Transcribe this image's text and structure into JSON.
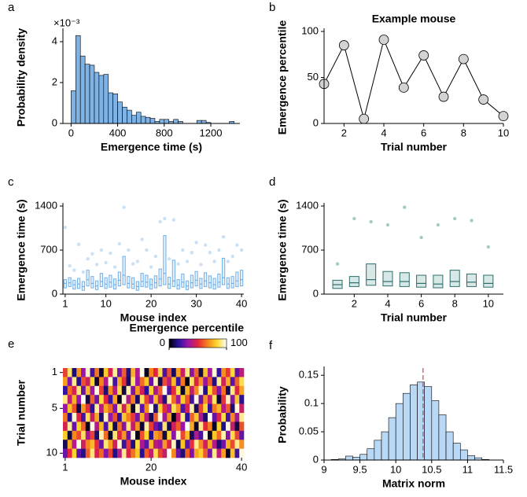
{
  "chart_data": [
    {
      "panel": "a",
      "type": "histogram",
      "xlabel": "Emergence time (s)",
      "ylabel": "Probability density",
      "y_exponent": "×10⁻³",
      "color": "#7fb2e5",
      "bins": [
        0,
        40,
        80,
        120,
        160,
        200,
        240,
        280,
        320,
        360,
        400,
        440,
        480,
        520,
        560,
        600,
        640,
        680,
        720,
        760,
        800,
        840,
        880,
        920,
        960,
        1000,
        1040,
        1080,
        1120,
        1160,
        1200,
        1240,
        1280,
        1320,
        1360,
        1400
      ],
      "values": [
        1.6,
        4.3,
        3.3,
        2.9,
        2.85,
        2.5,
        2.35,
        2.4,
        1.5,
        1.45,
        1.05,
        0.8,
        0.65,
        0.4,
        0.55,
        0.35,
        0.3,
        0.25,
        0.1,
        0.2,
        0.2,
        0.1,
        0.2,
        0.1,
        0,
        0,
        0,
        0.15,
        0.15,
        0.05,
        0,
        0,
        0,
        0,
        0.1
      ],
      "xlim": [
        -70,
        1450
      ],
      "xticks": [
        0,
        400,
        800,
        1200
      ],
      "ylim": [
        0,
        4.5
      ],
      "yticks": [
        0,
        2,
        4
      ]
    },
    {
      "panel": "b",
      "type": "line",
      "title": "Example mouse",
      "xlabel": "Trial number",
      "ylabel": "Emergence percentile",
      "color": "#000000",
      "marker_color": "#d3d3d3",
      "x": [
        1,
        2,
        3,
        4,
        5,
        6,
        7,
        8,
        9,
        10
      ],
      "values": [
        43,
        85,
        5,
        91,
        39,
        74,
        29,
        70,
        26,
        8
      ],
      "xlim": [
        1,
        10
      ],
      "xticks": [
        2,
        4,
        6,
        8,
        10
      ],
      "ylim": [
        0,
        100
      ],
      "yticks": [
        0,
        50,
        100
      ]
    },
    {
      "panel": "c",
      "type": "box",
      "xlabel": "Mouse index",
      "ylabel": "Emergence time (s)",
      "color": "#6fb0ea",
      "point_color": "#bcdaf5",
      "x": [
        1,
        2,
        3,
        4,
        5,
        6,
        7,
        8,
        9,
        10,
        11,
        12,
        13,
        14,
        15,
        16,
        17,
        18,
        19,
        20,
        21,
        22,
        23,
        24,
        25,
        26,
        27,
        28,
        29,
        30,
        31,
        32,
        33,
        34,
        35,
        36,
        37,
        38,
        39,
        40
      ],
      "q1": [
        100,
        120,
        80,
        90,
        60,
        130,
        100,
        70,
        120,
        90,
        110,
        80,
        130,
        150,
        100,
        90,
        60,
        120,
        110,
        80,
        100,
        130,
        150,
        90,
        120,
        80,
        110,
        70,
        100,
        130,
        90,
        120,
        100,
        80,
        110,
        150,
        90,
        100,
        120,
        130
      ],
      "median": [
        170,
        180,
        150,
        160,
        120,
        230,
        170,
        130,
        200,
        160,
        190,
        150,
        220,
        300,
        170,
        160,
        120,
        200,
        190,
        150,
        180,
        240,
        330,
        160,
        210,
        140,
        190,
        130,
        180,
        220,
        160,
        210,
        180,
        150,
        190,
        260,
        160,
        170,
        210,
        230
      ],
      "q3": [
        230,
        260,
        220,
        250,
        200,
        380,
        280,
        210,
        330,
        260,
        300,
        240,
        350,
        600,
        280,
        260,
        200,
        330,
        300,
        240,
        290,
        400,
        930,
        270,
        540,
        230,
        320,
        210,
        300,
        360,
        250,
        340,
        290,
        250,
        320,
        570,
        260,
        280,
        350,
        380
      ],
      "max": [
        1060,
        450,
        380,
        790,
        350,
        560,
        640,
        470,
        700,
        500,
        650,
        430,
        800,
        1380,
        700,
        480,
        520,
        870,
        700,
        430,
        600,
        1150,
        1200,
        560,
        1180,
        480,
        700,
        520,
        660,
        820,
        470,
        780,
        660,
        520,
        700,
        910,
        520,
        600,
        780,
        700
      ],
      "xlim": [
        0.5,
        40.5
      ],
      "xticks": [
        1,
        10,
        20,
        30,
        40
      ],
      "ylim": [
        0,
        1400
      ],
      "yticks": [
        0,
        700,
        1400
      ]
    },
    {
      "panel": "d",
      "type": "box",
      "xlabel": "Trial number",
      "ylabel": "Emergence time (s)",
      "color": "#2c6f6b",
      "point_color": "#8fbdb9",
      "x": [
        1,
        2,
        3,
        4,
        5,
        6,
        7,
        8,
        9,
        10
      ],
      "q1": [
        90,
        120,
        140,
        130,
        120,
        110,
        100,
        120,
        120,
        110
      ],
      "median": [
        150,
        180,
        230,
        200,
        200,
        170,
        160,
        200,
        190,
        170
      ],
      "q3": [
        220,
        280,
        480,
        360,
        340,
        300,
        300,
        380,
        320,
        300
      ],
      "max": [
        480,
        1200,
        1150,
        1100,
        1380,
        900,
        1100,
        1200,
        1170,
        750
      ],
      "xlim": [
        0.2,
        10.9
      ],
      "xticks": [
        2,
        4,
        6,
        8,
        10
      ],
      "ylim": [
        0,
        1400
      ],
      "yticks": [
        0,
        700,
        1400
      ]
    },
    {
      "panel": "e",
      "type": "heatmap",
      "xlabel": "Mouse index",
      "ylabel": "Trial number",
      "colorbar_label": "Emergence percentile",
      "colormap": [
        "#000000",
        "#2b12a0",
        "#9b16a8",
        "#e4243f",
        "#f5821c",
        "#fbd82e",
        "#ffffff"
      ],
      "clim": [
        0,
        100
      ],
      "cticks": [
        0,
        100
      ],
      "x": [
        1,
        2,
        3,
        4,
        5,
        6,
        7,
        8,
        9,
        10,
        11,
        12,
        13,
        14,
        15,
        16,
        17,
        18,
        19,
        20,
        21,
        22,
        23,
        24,
        25,
        26,
        27,
        28,
        29,
        30,
        31,
        32,
        33,
        34,
        35,
        36,
        37,
        38,
        39,
        40
      ],
      "y": [
        1,
        2,
        3,
        4,
        5,
        6,
        7,
        8,
        9,
        10
      ],
      "values": [
        [
          55,
          88,
          12,
          70,
          33,
          95,
          20,
          64,
          5,
          81,
          47,
          92,
          28,
          60,
          14,
          76,
          39,
          99,
          3,
          67,
          50,
          85,
          22,
          58,
          10,
          73,
          44,
          90,
          31,
          62,
          8,
          79,
          36,
          97,
          18,
          69,
          53,
          84,
          25,
          41
        ],
        [
          72,
          30,
          91,
          15,
          58,
          44,
          83,
          6,
          67,
          38,
          96,
          21,
          74,
          52,
          11,
          88,
          34,
          63,
          80,
          26,
          94,
          9,
          57,
          41,
          78,
          19,
          65,
          2,
          87,
          48,
          70,
          32,
          59,
          13,
          92,
          46,
          75,
          24,
          61,
          86
        ],
        [
          18,
          63,
          47,
          89,
          26,
          77,
          35,
          98,
          54,
          12,
          69,
          40,
          85,
          7,
          93,
          29,
          71,
          45,
          16,
          82,
          37,
          60,
          99,
          23,
          51,
          86,
          4,
          76,
          42,
          68,
          95,
          15,
          83,
          57,
          30,
          64,
          9,
          90,
          49,
          73
        ],
        [
          90,
          42,
          76,
          34,
          99,
          8,
          61,
          27,
          85,
          50,
          19,
          73,
          3,
          96,
          38,
          66,
          11,
          87,
          55,
          30,
          78,
          45,
          14,
          92,
          63,
          35,
          81,
          58,
          20,
          97,
          26,
          70,
          43,
          88,
          6,
          53,
          95,
          31,
          80,
          16
        ],
        [
          33,
          79,
          58,
          7,
          71,
          52,
          16,
          92,
          40,
          74,
          62,
          29,
          88,
          45,
          79,
          5,
          94,
          24,
          68,
          99,
          13,
          82,
          51,
          36,
          87,
          70,
          22,
          47,
          93,
          10,
          56,
          84,
          18,
          65,
          77,
          39,
          60,
          12,
          97,
          44
        ],
        [
          64,
          15,
          96,
          49,
          20,
          86,
          43,
          73,
          11,
          95,
          32,
          58,
          17,
          80,
          66,
          53,
          28,
          75,
          40,
          9,
          59,
          97,
          34,
          70,
          2,
          44,
          91,
          16,
          61,
          81,
          37,
          12,
          99,
          25,
          48,
          85,
          21,
          68,
          35,
          91
        ],
        [
          47,
          92,
          25,
          82,
          61,
          3,
          98,
          38,
          77,
          22,
          86,
          8,
          64,
          30,
          89,
          42,
          70,
          6,
          93,
          54,
          27,
          18,
          88,
          9,
          45,
          60,
          33,
          99,
          74,
          5,
          90,
          51,
          66,
          4,
          83,
          14,
          97,
          43,
          7,
          58
        ],
        [
          81,
          6,
          68,
          57,
          87,
          36,
          55,
          11,
          94,
          63,
          4,
          89,
          49,
          71,
          27,
          97,
          2,
          58,
          83,
          15,
          72,
          65,
          7,
          83,
          31,
          96,
          56,
          78,
          10,
          38,
          21,
          98,
          3,
          80,
          62,
          94,
          30,
          86,
          56,
          25
        ],
        [
          9,
          74,
          39,
          98,
          45,
          67,
          78,
          52,
          26,
          89,
          72,
          46,
          96,
          19,
          53,
          13,
          85,
          37,
          24,
          78,
          41,
          33,
          71,
          48,
          95,
          8,
          79,
          24,
          52,
          91,
          68,
          45,
          74,
          39,
          12,
          27,
          76,
          57,
          91,
          69
        ],
        [
          26,
          50,
          83,
          24,
          14,
          60,
          89,
          47,
          62,
          30,
          55,
          14,
          40,
          91,
          48,
          64,
          80,
          15,
          60,
          43,
          86,
          56,
          43,
          99,
          68,
          27,
          12,
          60,
          29,
          73,
          82,
          60,
          28,
          91,
          41,
          72,
          4,
          79,
          20,
          97
        ]
      ],
      "xlim": [
        0.5,
        40.5
      ],
      "xticks": [
        1,
        20,
        40
      ],
      "ylim": [
        0.5,
        10.5
      ],
      "yticks": [
        1,
        5,
        10
      ],
      "y_inverted": true
    },
    {
      "panel": "f",
      "type": "histogram",
      "xlabel": "Matrix norm",
      "ylabel": "Probability",
      "color": "#b9d8f5",
      "vline": 10.38,
      "vline_color": "#c0504d",
      "bins": [
        9.1,
        9.2,
        9.3,
        9.4,
        9.5,
        9.6,
        9.7,
        9.8,
        9.9,
        10.0,
        10.1,
        10.2,
        10.3,
        10.4,
        10.5,
        10.6,
        10.7,
        10.8,
        10.9,
        11.0,
        11.1,
        11.2,
        11.3
      ],
      "values": [
        0.001,
        0.002,
        0.007,
        0.005,
        0.01,
        0.02,
        0.035,
        0.05,
        0.075,
        0.1,
        0.118,
        0.133,
        0.138,
        0.13,
        0.105,
        0.08,
        0.05,
        0.03,
        0.018,
        0.008,
        0.004,
        0.001
      ],
      "xlim": [
        9,
        11.5
      ],
      "xticks": [
        9,
        9.5,
        10,
        10.5,
        11,
        11.5
      ],
      "ylim": [
        0,
        0.16
      ],
      "yticks": [
        0,
        0.05,
        0.1,
        0.15
      ]
    }
  ]
}
